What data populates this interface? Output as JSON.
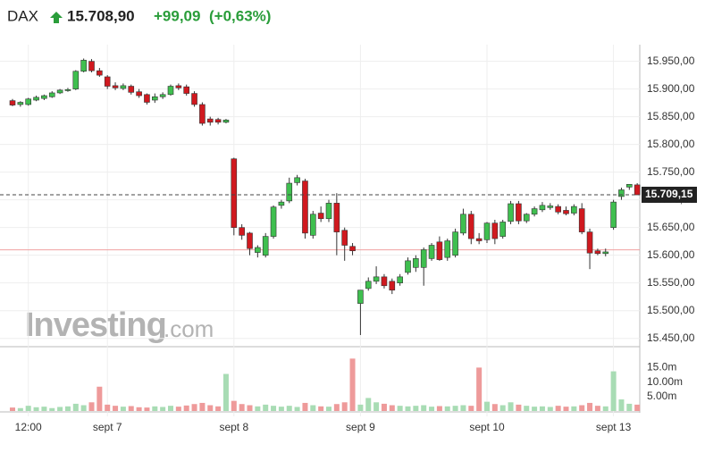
{
  "header": {
    "symbol": "DAX",
    "price": "15.708,90",
    "change": "+99,09",
    "change_pct": "(+0,63%)"
  },
  "chart_data": {
    "type": "candlestick",
    "watermark": "Investing",
    "watermark_suffix": ".com",
    "categories": [
      null,
      null,
      "12:00",
      null,
      null,
      null,
      null,
      null,
      null,
      null,
      null,
      null,
      "sept 7",
      null,
      null,
      null,
      null,
      null,
      null,
      null,
      null,
      null,
      null,
      null,
      null,
      null,
      null,
      null,
      "sept 8",
      null,
      null,
      null,
      null,
      null,
      null,
      null,
      null,
      null,
      null,
      null,
      null,
      null,
      null,
      null,
      "sept 9",
      null,
      null,
      null,
      null,
      null,
      null,
      null,
      null,
      null,
      null,
      null,
      null,
      null,
      null,
      null,
      "sept 10",
      null,
      null,
      null,
      null,
      null,
      null,
      null,
      null,
      null,
      null,
      null,
      null,
      null,
      null,
      null,
      "sept 13",
      null,
      null,
      null
    ],
    "open": [
      15879,
      15872,
      15872,
      15880,
      15883,
      15886,
      15893,
      15897,
      15900,
      15932,
      15950,
      15933,
      15922,
      15906,
      15901,
      15905,
      15895,
      15890,
      15880,
      15886,
      15890,
      15906,
      15904,
      15892,
      15872,
      15846,
      15845,
      15840,
      15774,
      15650,
      15640,
      15605,
      15600,
      15634,
      15690,
      15698,
      15731,
      15734,
      15636,
      15676,
      15666,
      15694,
      15645,
      15616,
      15513,
      15540,
      15553,
      15561,
      15553,
      15550,
      15569,
      15578,
      15578,
      15594,
      15624,
      15596,
      15600,
      15640,
      15674,
      15630,
      15628,
      15658,
      15634,
      15661,
      15693,
      15662,
      15674,
      15682,
      15686,
      15688,
      15681,
      15676,
      15684,
      15642,
      15608,
      15603,
      15650,
      15706,
      15723,
      15727
    ],
    "high": [
      15882,
      15878,
      15884,
      15888,
      15890,
      15896,
      15900,
      15902,
      15934,
      15955,
      15954,
      15938,
      15925,
      15912,
      15910,
      15908,
      15900,
      15892,
      15892,
      15894,
      15908,
      15910,
      15908,
      15896,
      15876,
      15850,
      15848,
      15846,
      15776,
      15656,
      15642,
      15618,
      15640,
      15690,
      15700,
      15740,
      15745,
      15738,
      15680,
      15688,
      15700,
      15712,
      15650,
      15622,
      15537,
      15560,
      15580,
      15566,
      15558,
      15566,
      15596,
      15600,
      15614,
      15622,
      15634,
      15630,
      15648,
      15684,
      15680,
      15640,
      15660,
      15664,
      15664,
      15698,
      15698,
      15676,
      15688,
      15696,
      15694,
      15692,
      15688,
      15692,
      15694,
      15648,
      15612,
      15612,
      15700,
      15722,
      15728,
      15730
    ],
    "low": [
      15869,
      15868,
      15870,
      15878,
      15880,
      15884,
      15891,
      15895,
      15898,
      15930,
      15930,
      15922,
      15900,
      15898,
      15898,
      15890,
      15884,
      15872,
      15875,
      15882,
      15888,
      15898,
      15888,
      15868,
      15834,
      15834,
      15836,
      15838,
      15636,
      15628,
      15600,
      15596,
      15596,
      15630,
      15684,
      15694,
      15726,
      15630,
      15630,
      15660,
      15660,
      15600,
      15590,
      15600,
      15456,
      15536,
      15548,
      15540,
      15530,
      15545,
      15565,
      15570,
      15545,
      15590,
      15590,
      15590,
      15596,
      15636,
      15620,
      15620,
      15622,
      15620,
      15630,
      15656,
      15656,
      15658,
      15670,
      15678,
      15682,
      15674,
      15672,
      15672,
      15638,
      15575,
      15600,
      15598,
      15646,
      15700,
      15718,
      15710
    ],
    "close": [
      15871,
      15876,
      15882,
      15885,
      15888,
      15893,
      15898,
      15899,
      15932,
      15952,
      15933,
      15925,
      15905,
      15902,
      15906,
      15894,
      15888,
      15876,
      15886,
      15890,
      15905,
      15902,
      15892,
      15872,
      15838,
      15840,
      15840,
      15844,
      15650,
      15636,
      15612,
      15614,
      15634,
      15687,
      15696,
      15730,
      15740,
      15640,
      15674,
      15666,
      15694,
      15642,
      15618,
      15608,
      15537,
      15553,
      15561,
      15545,
      15537,
      15561,
      15590,
      15594,
      15610,
      15618,
      15592,
      15626,
      15642,
      15674,
      15630,
      15626,
      15658,
      15630,
      15660,
      15693,
      15662,
      15674,
      15684,
      15690,
      15689,
      15678,
      15675,
      15688,
      15642,
      15604,
      15603,
      15606,
      15696,
      15718,
      15728,
      15709
    ],
    "volume": [
      1.2,
      1.0,
      1.8,
      1.3,
      1.5,
      1.0,
      1.4,
      1.6,
      2.5,
      2.0,
      3.0,
      8.4,
      2.2,
      1.8,
      1.5,
      1.7,
      1.3,
      1.2,
      1.6,
      1.4,
      1.8,
      1.5,
      1.9,
      2.4,
      2.8,
      2.0,
      1.6,
      12.8,
      3.5,
      2.4,
      2.0,
      1.6,
      2.2,
      1.8,
      1.5,
      1.8,
      1.4,
      2.8,
      2.0,
      1.6,
      1.5,
      2.4,
      3.0,
      18.1,
      2.2,
      4.5,
      3.0,
      2.5,
      2.0,
      1.8,
      1.6,
      1.8,
      2.0,
      1.5,
      1.7,
      1.6,
      1.8,
      2.0,
      1.8,
      15.0,
      3.2,
      2.4,
      2.0,
      3.0,
      2.2,
      1.8,
      1.5,
      1.6,
      1.4,
      1.8,
      1.5,
      1.6,
      2.0,
      2.8,
      1.8,
      1.6,
      13.7,
      4.0,
      2.5,
      2.2
    ],
    "up_color": "#3fbf4f",
    "down_color": "#d0191f",
    "volume_up_color": "#a8dcb4",
    "volume_down_color": "#ee9a9a",
    "ylim": [
      15435,
      15980
    ],
    "yticks": [
      {
        "value": 15450,
        "label": "15.450,00"
      },
      {
        "value": 15500,
        "label": "15.500,00"
      },
      {
        "value": 15550,
        "label": "15.550,00"
      },
      {
        "value": 15600,
        "label": "15.600,00"
      },
      {
        "value": 15650,
        "label": "15.650,00"
      },
      {
        "value": 15700,
        "label": "15.700,00"
      },
      {
        "value": 15750,
        "label": "15.750,00"
      },
      {
        "value": 15800,
        "label": "15.800,00"
      },
      {
        "value": 15850,
        "label": "15.850,00"
      },
      {
        "value": 15900,
        "label": "15.900,00"
      },
      {
        "value": 15950,
        "label": "15.950,00"
      }
    ],
    "last_price": {
      "value": 15709.15,
      "label": "15.709,15"
    },
    "prev_close": 15609.81,
    "volume_ylim": [
      0,
      21.6
    ],
    "volume_ticks": [
      {
        "value": 5,
        "label": "5.00m"
      },
      {
        "value": 10,
        "label": "10.00m"
      },
      {
        "value": 15,
        "label": "15.0m"
      }
    ]
  }
}
